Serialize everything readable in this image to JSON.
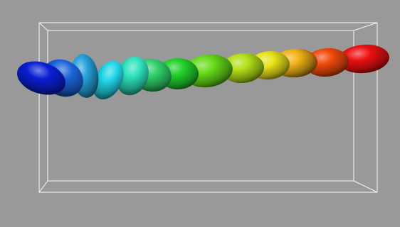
{
  "scene": {
    "background_color": "#999999",
    "bounding_box_color": "#ffffff",
    "ellipsoid_count": 14,
    "ellipsoids": [
      {
        "color_name": "blue",
        "color": "#0a1fd6"
      },
      {
        "color_name": "royal-blue",
        "color": "#1b63d9"
      },
      {
        "color_name": "sky-blue",
        "color": "#28a3dc"
      },
      {
        "color_name": "cyan",
        "color": "#21d6e8"
      },
      {
        "color_name": "aqua-green",
        "color": "#2ee2bd"
      },
      {
        "color_name": "teal-green",
        "color": "#2fd06a"
      },
      {
        "color_name": "green",
        "color": "#22d12b"
      },
      {
        "color_name": "lime-green",
        "color": "#65dc19"
      },
      {
        "color_name": "yellow-green",
        "color": "#b3e018"
      },
      {
        "color_name": "yellow",
        "color": "#e8e21a"
      },
      {
        "color_name": "amber",
        "color": "#f2b318"
      },
      {
        "color_name": "orange",
        "color": "#f07e10"
      },
      {
        "color_name": "red-orange",
        "color": "#f04a0c"
      },
      {
        "color_name": "red",
        "color": "#ec1010"
      }
    ]
  }
}
